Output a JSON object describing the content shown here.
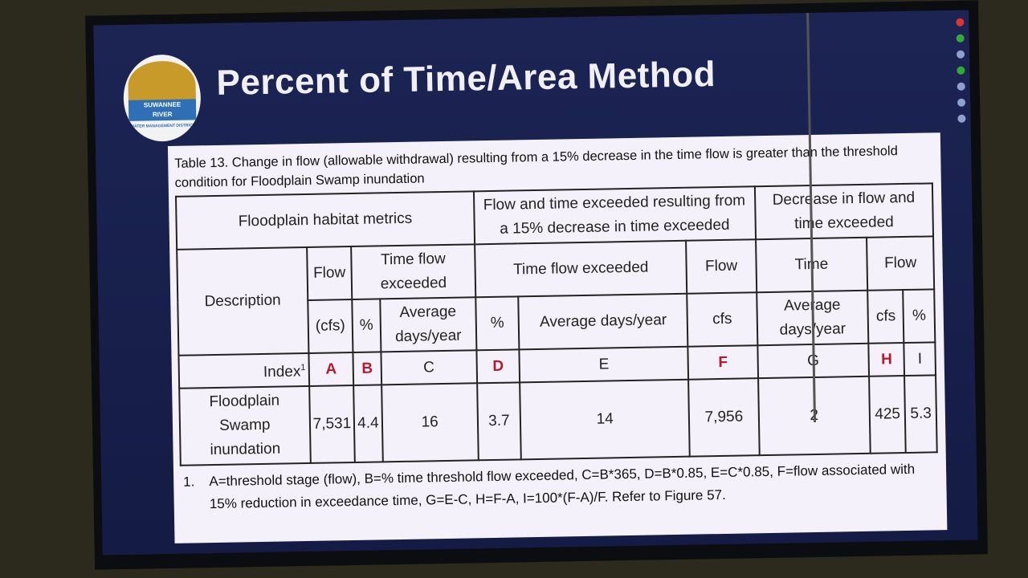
{
  "header": {
    "title": "Percent of Time/Area Method",
    "logo": [
      "SUWANNEE",
      "RIVER",
      "WATER MANAGEMENT DISTRICT"
    ]
  },
  "table": {
    "caption": "Table 13. Change in flow (allowable withdrawal) resulting from a 15% decrease in the time flow is greater than the threshold condition for Floodplain Swamp inundation",
    "group_headers": [
      "Floodplain habitat metrics",
      "Flow and time exceeded resulting from a 15% decrease in time exceeded",
      "Decrease in flow and time exceeded"
    ],
    "sub_headers": [
      "Description",
      "Flow",
      "Time flow exceeded",
      "Time flow exceeded",
      "Flow",
      "Time",
      "Flow"
    ],
    "units": [
      "(cfs)",
      "%",
      "Average days/year",
      "%",
      "Average days/year",
      "cfs",
      "Average days/year",
      "cfs",
      "%"
    ],
    "index_label": "Index",
    "index_note": "1",
    "index": [
      "A",
      "B",
      "C",
      "D",
      "E",
      "F",
      "G",
      "H",
      "I"
    ],
    "rows": [
      [
        "Floodplain Swamp inundation",
        "7,531",
        "4.4",
        "16",
        "3.7",
        "14",
        "7,956",
        "2",
        "425",
        "5.3"
      ]
    ],
    "footnote_number": "1.",
    "footnote": "A=threshold stage (flow), B=% time threshold flow exceeded, C=B*365, D=B*0.85, E=C*0.85, F=flow associated with 15% reduction in exceedance time, G=E-C, H=F-A, I=100*(F-A)/F. Refer to Figure 57."
  }
}
